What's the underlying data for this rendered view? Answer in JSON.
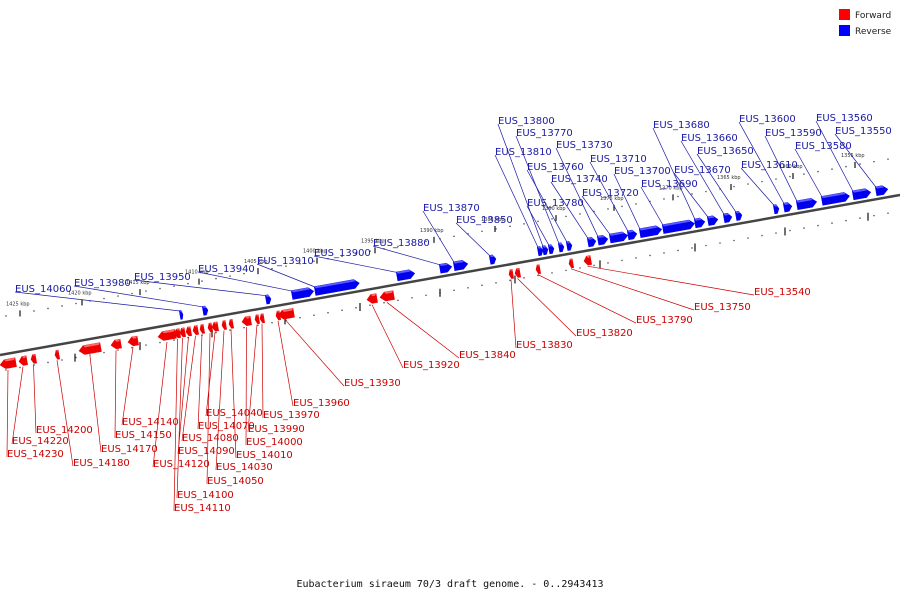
{
  "caption": "Eubacterium siraeum 70/3 draft genome. - 0..2943413",
  "legend": [
    {
      "label": "Forward",
      "color": "#ff0000"
    },
    {
      "label": "Reverse",
      "color": "#0000ff"
    }
  ],
  "ticks": [
    "1355 kbp",
    "1360 kbp",
    "1365 kbp",
    "1370 kbp",
    "1375 kbp",
    "1380 kbp",
    "1385 kbp",
    "1390 kbp",
    "1395 kbp",
    "1400 kbp",
    "1405 kbp",
    "1410 kbp",
    "1415 kbp",
    "1420 kbp",
    "1425 kbp"
  ],
  "forward_genes": [
    "EUS_13540",
    "EUS_13750",
    "EUS_13790",
    "EUS_13820",
    "EUS_13830",
    "EUS_13840",
    "EUS_13920",
    "EUS_13930",
    "EUS_13960",
    "EUS_13970",
    "EUS_13990",
    "EUS_14000",
    "EUS_14010",
    "EUS_14030",
    "EUS_14040",
    "EUS_14050",
    "EUS_14070",
    "EUS_14080",
    "EUS_14090",
    "EUS_14100",
    "EUS_14110",
    "EUS_14120",
    "EUS_14140",
    "EUS_14150",
    "EUS_14170",
    "EUS_14180",
    "EUS_14200",
    "EUS_14220",
    "EUS_14230"
  ],
  "reverse_genes": [
    "EUS_13550",
    "EUS_13560",
    "EUS_13580",
    "EUS_13590",
    "EUS_13600",
    "EUS_13610",
    "EUS_13650",
    "EUS_13660",
    "EUS_13670",
    "EUS_13680",
    "EUS_13690",
    "EUS_13700",
    "EUS_13710",
    "EUS_13720",
    "EUS_13730",
    "EUS_13740",
    "EUS_13760",
    "EUS_13770",
    "EUS_13780",
    "EUS_13800",
    "EUS_13810",
    "EUS_13850",
    "EUS_13870",
    "EUS_13880",
    "EUS_13900",
    "EUS_13910",
    "EUS_13940",
    "EUS_13950",
    "EUS_13980",
    "EUS_14060"
  ]
}
